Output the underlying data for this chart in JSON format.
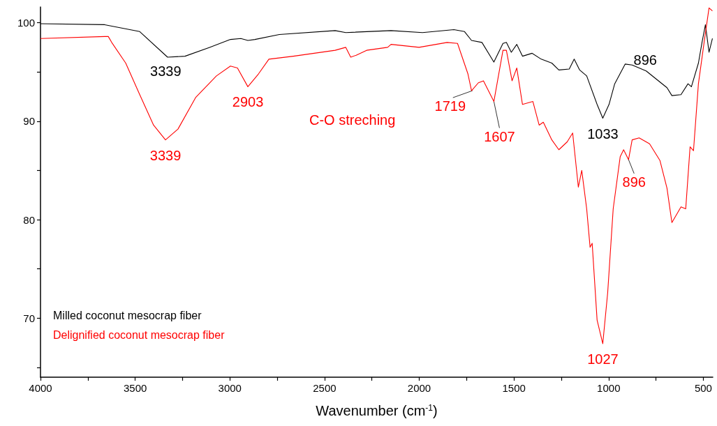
{
  "chart_data": {
    "type": "line",
    "xlabel": "Wavenumber (cm$^{-1}$)",
    "xlim": [
      4000,
      450
    ],
    "ylim": [
      64,
      101.6
    ],
    "xticks": [
      4000,
      {
        "value": 3750,
        "label": null
      },
      3500,
      {
        "value": 3250,
        "label": null
      },
      3000,
      {
        "value": 2750,
        "label": null
      },
      2500,
      {
        "value": 2250,
        "label": null
      },
      2000,
      {
        "value": 1750,
        "label": null
      },
      1500,
      {
        "value": 1250,
        "label": null
      },
      1000,
      {
        "value": 750,
        "label": null
      },
      500
    ],
    "yticks": [
      {
        "value": 65,
        "label": null
      },
      70,
      {
        "value": 75,
        "label": null
      },
      80,
      {
        "value": 85,
        "label": null
      },
      90,
      {
        "value": 95,
        "label": null
      },
      100
    ],
    "grid": false,
    "legend": "bottom left",
    "marker": "none",
    "line_style": "solid",
    "series": [
      {
        "name": "Milled coconut mesocrap fiber",
        "color": "#000000",
        "x": [
          4000,
          3661,
          3476,
          3329,
          3237,
          3107,
          2997,
          2942,
          2905,
          2868,
          2739,
          2444,
          2388,
          2149,
          1983,
          1817,
          1761,
          1724,
          1669,
          1606,
          1558,
          1540,
          1514,
          1485,
          1455,
          1404,
          1356,
          1300,
          1263,
          1208,
          1182,
          1153,
          1116,
          1061,
          1031,
          998,
          968,
          913,
          876,
          802,
          692,
          666,
          618,
          581,
          563,
          526,
          507,
          489,
          470,
          452
        ],
        "values": [
          99.9,
          99.8,
          99.1,
          96.5,
          96.6,
          97.5,
          98.3,
          98.4,
          98.2,
          98.3,
          98.8,
          99.2,
          99.0,
          99.2,
          99.0,
          99.3,
          99.1,
          98.2,
          98.0,
          96.0,
          97.9,
          98.0,
          97.0,
          97.8,
          96.6,
          96.9,
          96.3,
          95.9,
          95.2,
          95.3,
          96.3,
          95.2,
          94.6,
          91.7,
          90.3,
          91.7,
          93.8,
          95.8,
          95.7,
          95.1,
          93.4,
          92.6,
          92.7,
          93.8,
          93.5,
          95.9,
          98.0,
          99.8,
          97.0,
          98.4
        ]
      },
      {
        "name": "Delignified coconut mesocrap fiber",
        "color": "#ff0000",
        "x": [
          4000,
          3661,
          3642,
          3624,
          3550,
          3476,
          3403,
          3340,
          3274,
          3181,
          3071,
          2997,
          2960,
          2905,
          2849,
          2794,
          2665,
          2444,
          2388,
          2362,
          2333,
          2278,
          2167,
          2149,
          2001,
          1853,
          1798,
          1743,
          1724,
          1688,
          1661,
          1606,
          1558,
          1540,
          1510,
          1485,
          1455,
          1400,
          1367,
          1345,
          1300,
          1263,
          1219,
          1190,
          1160,
          1142,
          1116,
          1098,
          1087,
          1061,
          1031,
          1005,
          976,
          939,
          921,
          895,
          876,
          839,
          784,
          729,
          692,
          666,
          618,
          593,
          570,
          552,
          526,
          496,
          470,
          452
        ],
        "values": [
          98.4,
          98.6,
          98.6,
          98.0,
          95.9,
          92.7,
          89.6,
          88.1,
          89.2,
          92.4,
          94.6,
          95.6,
          95.4,
          93.5,
          94.8,
          96.3,
          96.6,
          97.2,
          97.5,
          96.5,
          96.7,
          97.2,
          97.5,
          97.8,
          97.5,
          98.0,
          97.9,
          94.8,
          93.1,
          93.9,
          94.1,
          92.0,
          97.2,
          97.2,
          94.1,
          95.4,
          91.7,
          92.0,
          89.6,
          89.9,
          88.1,
          87.1,
          87.9,
          88.8,
          83.3,
          85.0,
          81.1,
          77.2,
          77.6,
          69.8,
          67.4,
          72.6,
          81.1,
          86.4,
          87.1,
          86.1,
          88.1,
          88.3,
          87.7,
          86.0,
          83.2,
          79.7,
          81.3,
          81.1,
          87.4,
          87.0,
          93.8,
          98.0,
          101.5,
          101.2
        ]
      }
    ],
    "annotations": [
      {
        "text": "3339",
        "x": 3339,
        "y": 96.5
      },
      {
        "text": "3339",
        "x": 3340,
        "y": 88.1
      },
      {
        "text": "2903",
        "x": 2905,
        "y": 93.5
      },
      "C-O streching",
      {
        "text": "1719",
        "x": 1719,
        "y": 93.1
      },
      {
        "text": "1607",
        "x": 1606,
        "y": 92.0
      },
      {
        "text": "1033",
        "x": 1031,
        "y": 90.3
      },
      {
        "text": "896",
        "x": 895,
        "y": 95.8
      },
      {
        "text": "896",
        "x": 895,
        "y": 86.1
      },
      {
        "text": "1027",
        "x": 1031,
        "y": 67.4
      }
    ]
  }
}
